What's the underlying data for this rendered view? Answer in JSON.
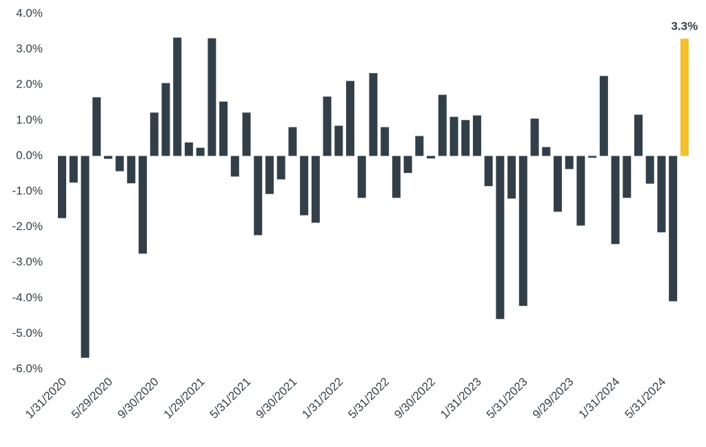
{
  "chart_data": {
    "type": "bar",
    "categories": [
      "1/31/2020",
      null,
      null,
      null,
      "5/29/2020",
      null,
      null,
      null,
      "9/30/2020",
      null,
      null,
      null,
      "1/29/2021",
      null,
      null,
      null,
      "5/31/2021",
      null,
      null,
      null,
      "9/30/2021",
      null,
      null,
      null,
      "1/31/2022",
      null,
      null,
      null,
      "5/31/2022",
      null,
      null,
      null,
      "9/30/2022",
      null,
      null,
      null,
      "1/31/2023",
      null,
      null,
      null,
      "5/31/2023",
      null,
      null,
      null,
      "9/29/2023",
      null,
      null,
      null,
      "1/31/2024",
      null,
      null,
      null,
      "5/31/2024",
      null,
      null
    ],
    "values": [
      -1.75,
      -0.75,
      -5.68,
      1.65,
      -0.08,
      -0.43,
      -0.77,
      -2.75,
      1.22,
      2.05,
      3.33,
      0.38,
      0.23,
      3.31,
      1.53,
      -0.58,
      1.22,
      -2.23,
      -1.07,
      -0.66,
      0.81,
      -1.67,
      -1.88,
      1.67,
      0.85,
      2.11,
      -1.18,
      2.33,
      0.81,
      -1.18,
      -0.48,
      0.56,
      -0.07,
      1.72,
      1.1,
      1.01,
      1.14,
      -0.85,
      -4.59,
      -1.2,
      -4.22,
      1.05,
      0.25,
      -1.57,
      -0.37,
      -1.96,
      -0.05,
      2.25,
      -2.48,
      -1.18,
      1.16,
      -0.78,
      -2.15,
      -4.09,
      3.3
    ],
    "value_labels": [
      null,
      null,
      null,
      null,
      null,
      null,
      null,
      null,
      null,
      null,
      null,
      null,
      null,
      null,
      null,
      null,
      null,
      null,
      null,
      null,
      null,
      null,
      null,
      null,
      null,
      null,
      null,
      null,
      null,
      null,
      null,
      null,
      null,
      null,
      null,
      null,
      null,
      null,
      null,
      null,
      null,
      null,
      null,
      null,
      null,
      null,
      null,
      null,
      null,
      null,
      null,
      null,
      null,
      null,
      "3.3%"
    ],
    "colors": [
      "#333f48",
      "#333f48",
      "#333f48",
      "#333f48",
      "#333f48",
      "#333f48",
      "#333f48",
      "#333f48",
      "#333f48",
      "#333f48",
      "#333f48",
      "#333f48",
      "#333f48",
      "#333f48",
      "#333f48",
      "#333f48",
      "#333f48",
      "#333f48",
      "#333f48",
      "#333f48",
      "#333f48",
      "#333f48",
      "#333f48",
      "#333f48",
      "#333f48",
      "#333f48",
      "#333f48",
      "#333f48",
      "#333f48",
      "#333f48",
      "#333f48",
      "#333f48",
      "#333f48",
      "#333f48",
      "#333f48",
      "#333f48",
      "#333f48",
      "#333f48",
      "#333f48",
      "#333f48",
      "#333f48",
      "#333f48",
      "#333f48",
      "#333f48",
      "#333f48",
      "#333f48",
      "#333f48",
      "#333f48",
      "#333f48",
      "#333f48",
      "#333f48",
      "#333f48",
      "#333f48",
      "#333f48",
      "#f4c02d"
    ],
    "ylim": [
      -6,
      4
    ],
    "yticks": [
      {
        "value": -6,
        "label": "-6.0%"
      },
      {
        "value": -5,
        "label": "-5.0%"
      },
      {
        "value": -4,
        "label": "-4.0%"
      },
      {
        "value": -3,
        "label": "-3.0%"
      },
      {
        "value": -2,
        "label": "-2.0%"
      },
      {
        "value": -1,
        "label": "-1.0%"
      },
      {
        "value": 0,
        "label": "0.0%"
      },
      {
        "value": 1,
        "label": "1.0%"
      },
      {
        "value": 2,
        "label": "2.0%"
      },
      {
        "value": 3,
        "label": "3.0%"
      },
      {
        "value": 4,
        "label": "4.0%"
      }
    ],
    "grid": false
  }
}
